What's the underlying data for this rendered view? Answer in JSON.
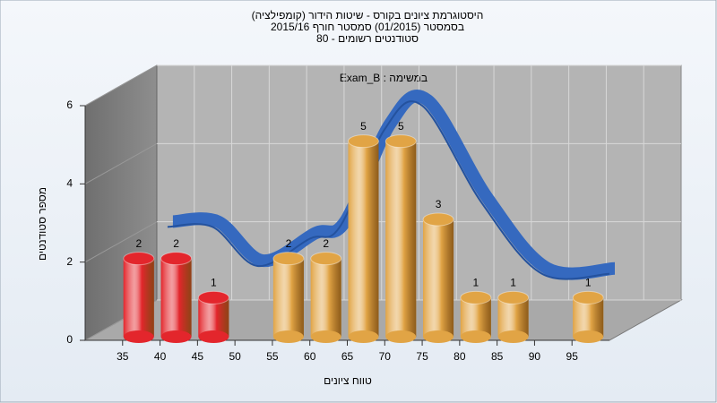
{
  "chart_data": {
    "type": "bar3d",
    "title": [
      "היסטוגרמת ציונים בקורס - שיטות הידור (קומפילציה)",
      "בסמסטר  (01/2015)  סמסטר חורף 2015/16",
      "סטודנטים רשומים - 80"
    ],
    "subtitle": "Exam_B : במשימה",
    "xlabel": "טווח ציונים",
    "ylabel": "מספר סטודנטים",
    "x": [
      35,
      40,
      45,
      55,
      60,
      65,
      70,
      75,
      80,
      85,
      95
    ],
    "values": [
      2,
      2,
      1,
      2,
      2,
      5,
      5,
      3,
      1,
      1,
      1
    ],
    "colors": [
      "#e3262c",
      "#e3262c",
      "#e3262c",
      "#e1a445",
      "#e1a445",
      "#e1a445",
      "#e1a445",
      "#e1a445",
      "#e1a445",
      "#e1a445",
      "#e1a445"
    ],
    "trend": {
      "color": "#3569bf",
      "x": [
        41,
        47,
        53,
        60,
        64,
        70,
        75,
        83,
        91,
        100
      ],
      "values": [
        2.9,
        2.9,
        1.9,
        2.6,
        2.9,
        5.4,
        6.0,
        3.5,
        1.7,
        1.7
      ]
    },
    "xlim": [
      30,
      100
    ],
    "xticks": [
      35,
      40,
      45,
      50,
      55,
      60,
      65,
      70,
      75,
      80,
      85,
      90,
      95
    ],
    "ylim": [
      0,
      6
    ],
    "yticks": [
      0,
      2,
      4,
      6
    ],
    "grid": true
  }
}
